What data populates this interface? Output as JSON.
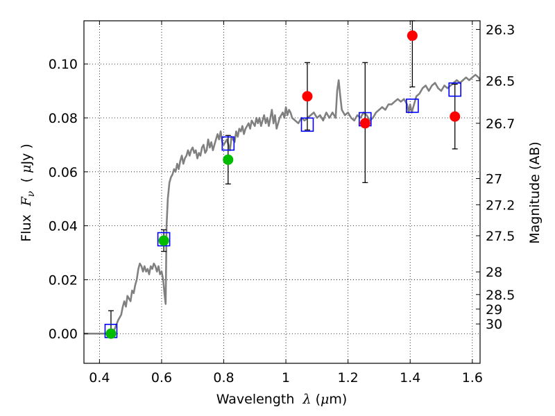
{
  "chart_data": {
    "type": "scatter",
    "xlabel": {
      "prefix": "Wavelength",
      "symbol": "λ",
      "unit_open": "(",
      "unit_mu": "μ",
      "unit_rest": "m)"
    },
    "ylabel": {
      "prefix": "Flux",
      "symbol": "F",
      "sub": "ν",
      "unit_open": "(",
      "unit_mu": "μ",
      "unit_rest": "Jy )"
    },
    "y2label": "Magnitude (AB)",
    "xlim": [
      0.35,
      1.625
    ],
    "ylim": [
      -0.011,
      0.116
    ],
    "xticks": [
      {
        "v": 0.4,
        "t": "0.4"
      },
      {
        "v": 0.6,
        "t": "0.6"
      },
      {
        "v": 0.8,
        "t": "0.8"
      },
      {
        "v": 1.0,
        "t": "1"
      },
      {
        "v": 1.2,
        "t": "1.2"
      },
      {
        "v": 1.4,
        "t": "1.4"
      },
      {
        "v": 1.6,
        "t": "1.6"
      }
    ],
    "yticks": [
      {
        "v": 0.0,
        "t": "0.00"
      },
      {
        "v": 0.02,
        "t": "0.02"
      },
      {
        "v": 0.04,
        "t": "0.04"
      },
      {
        "v": 0.06,
        "t": "0.06"
      },
      {
        "v": 0.08,
        "t": "0.08"
      },
      {
        "v": 0.1,
        "t": "0.10"
      }
    ],
    "y2ticks": [
      {
        "v": 0.1128,
        "t": "26.3"
      },
      {
        "v": 0.0938,
        "t": "26.5"
      },
      {
        "v": 0.078,
        "t": "26.7"
      },
      {
        "v": 0.0575,
        "t": "27"
      },
      {
        "v": 0.0478,
        "t": "27.2"
      },
      {
        "v": 0.0363,
        "t": "27.5"
      },
      {
        "v": 0.0229,
        "t": "28"
      },
      {
        "v": 0.0145,
        "t": "28.5"
      },
      {
        "v": 0.0091,
        "t": "29"
      },
      {
        "v": 0.0036,
        "t": "30"
      }
    ],
    "grid": true,
    "colors": {
      "model": "#808080",
      "square": "#0000ff",
      "red": "#ff0000",
      "green": "#00bb00",
      "errorbar": "#000000"
    },
    "series": [
      {
        "kind": "line",
        "points": [
          [
            0.35,
            0.0
          ],
          [
            0.44,
            0.0
          ],
          [
            0.45,
            0.002
          ],
          [
            0.46,
            0.005
          ],
          [
            0.47,
            0.007
          ],
          [
            0.475,
            0.01
          ],
          [
            0.48,
            0.012
          ],
          [
            0.485,
            0.01
          ],
          [
            0.49,
            0.014
          ],
          [
            0.5,
            0.012
          ],
          [
            0.505,
            0.016
          ],
          [
            0.51,
            0.015
          ],
          [
            0.515,
            0.018
          ],
          [
            0.52,
            0.02
          ],
          [
            0.525,
            0.024
          ],
          [
            0.53,
            0.026
          ],
          [
            0.535,
            0.025
          ],
          [
            0.54,
            0.023
          ],
          [
            0.545,
            0.025
          ],
          [
            0.55,
            0.023
          ],
          [
            0.555,
            0.024
          ],
          [
            0.56,
            0.022
          ],
          [
            0.565,
            0.025
          ],
          [
            0.57,
            0.024
          ],
          [
            0.575,
            0.026
          ],
          [
            0.58,
            0.025
          ],
          [
            0.585,
            0.023
          ],
          [
            0.59,
            0.025
          ],
          [
            0.595,
            0.022
          ],
          [
            0.6,
            0.023
          ],
          [
            0.605,
            0.02
          ],
          [
            0.61,
            0.014
          ],
          [
            0.613,
            0.011
          ],
          [
            0.616,
            0.04
          ],
          [
            0.62,
            0.05
          ],
          [
            0.625,
            0.056
          ],
          [
            0.63,
            0.058
          ],
          [
            0.635,
            0.059
          ],
          [
            0.64,
            0.061
          ],
          [
            0.645,
            0.06
          ],
          [
            0.65,
            0.063
          ],
          [
            0.655,
            0.061
          ],
          [
            0.66,
            0.064
          ],
          [
            0.665,
            0.066
          ],
          [
            0.67,
            0.063
          ],
          [
            0.675,
            0.065
          ],
          [
            0.68,
            0.066
          ],
          [
            0.685,
            0.068
          ],
          [
            0.69,
            0.066
          ],
          [
            0.695,
            0.068
          ],
          [
            0.7,
            0.069
          ],
          [
            0.705,
            0.067
          ],
          [
            0.71,
            0.068
          ],
          [
            0.715,
            0.065
          ],
          [
            0.72,
            0.067
          ],
          [
            0.725,
            0.066
          ],
          [
            0.73,
            0.069
          ],
          [
            0.735,
            0.07
          ],
          [
            0.74,
            0.067
          ],
          [
            0.745,
            0.068
          ],
          [
            0.75,
            0.072
          ],
          [
            0.755,
            0.069
          ],
          [
            0.76,
            0.071
          ],
          [
            0.765,
            0.068
          ],
          [
            0.77,
            0.07
          ],
          [
            0.775,
            0.072
          ],
          [
            0.78,
            0.074
          ],
          [
            0.785,
            0.072
          ],
          [
            0.79,
            0.075
          ],
          [
            0.795,
            0.071
          ],
          [
            0.8,
            0.07
          ],
          [
            0.805,
            0.071
          ],
          [
            0.81,
            0.072
          ],
          [
            0.815,
            0.07
          ],
          [
            0.82,
            0.068
          ],
          [
            0.825,
            0.073
          ],
          [
            0.83,
            0.072
          ],
          [
            0.835,
            0.071
          ],
          [
            0.84,
            0.075
          ],
          [
            0.845,
            0.073
          ],
          [
            0.85,
            0.076
          ],
          [
            0.855,
            0.075
          ],
          [
            0.86,
            0.077
          ],
          [
            0.865,
            0.074
          ],
          [
            0.87,
            0.076
          ],
          [
            0.88,
            0.078
          ],
          [
            0.885,
            0.076
          ],
          [
            0.89,
            0.079
          ],
          [
            0.9,
            0.077
          ],
          [
            0.905,
            0.08
          ],
          [
            0.91,
            0.078
          ],
          [
            0.915,
            0.08
          ],
          [
            0.92,
            0.077
          ],
          [
            0.925,
            0.079
          ],
          [
            0.93,
            0.081
          ],
          [
            0.935,
            0.078
          ],
          [
            0.94,
            0.08
          ],
          [
            0.945,
            0.077
          ],
          [
            0.95,
            0.08
          ],
          [
            0.955,
            0.083
          ],
          [
            0.96,
            0.078
          ],
          [
            0.965,
            0.081
          ],
          [
            0.97,
            0.076
          ],
          [
            0.975,
            0.078
          ],
          [
            0.98,
            0.08
          ],
          [
            0.99,
            0.082
          ],
          [
            0.995,
            0.08
          ],
          [
            1.0,
            0.084
          ],
          [
            1.005,
            0.081
          ],
          [
            1.01,
            0.083
          ],
          [
            1.015,
            0.082
          ],
          [
            1.02,
            0.08
          ],
          [
            1.03,
            0.079
          ],
          [
            1.04,
            0.078
          ],
          [
            1.05,
            0.08
          ],
          [
            1.06,
            0.079
          ],
          [
            1.07,
            0.08
          ],
          [
            1.08,
            0.081
          ],
          [
            1.09,
            0.082
          ],
          [
            1.1,
            0.08
          ],
          [
            1.11,
            0.081
          ],
          [
            1.12,
            0.079
          ],
          [
            1.13,
            0.082
          ],
          [
            1.14,
            0.08
          ],
          [
            1.15,
            0.082
          ],
          [
            1.16,
            0.08
          ],
          [
            1.165,
            0.09
          ],
          [
            1.17,
            0.094
          ],
          [
            1.175,
            0.088
          ],
          [
            1.18,
            0.083
          ],
          [
            1.19,
            0.081
          ],
          [
            1.2,
            0.082
          ],
          [
            1.21,
            0.08
          ],
          [
            1.22,
            0.079
          ],
          [
            1.23,
            0.081
          ],
          [
            1.24,
            0.08
          ],
          [
            1.25,
            0.082
          ],
          [
            1.26,
            0.081
          ],
          [
            1.27,
            0.079
          ],
          [
            1.28,
            0.08
          ],
          [
            1.29,
            0.082
          ],
          [
            1.3,
            0.083
          ],
          [
            1.31,
            0.084
          ],
          [
            1.32,
            0.083
          ],
          [
            1.33,
            0.085
          ],
          [
            1.34,
            0.085
          ],
          [
            1.35,
            0.086
          ],
          [
            1.36,
            0.087
          ],
          [
            1.37,
            0.086
          ],
          [
            1.38,
            0.087
          ],
          [
            1.39,
            0.085
          ],
          [
            1.395,
            0.082
          ],
          [
            1.4,
            0.085
          ],
          [
            1.405,
            0.082
          ],
          [
            1.41,
            0.084
          ],
          [
            1.42,
            0.088
          ],
          [
            1.43,
            0.089
          ],
          [
            1.44,
            0.091
          ],
          [
            1.45,
            0.092
          ],
          [
            1.46,
            0.09
          ],
          [
            1.47,
            0.092
          ],
          [
            1.48,
            0.093
          ],
          [
            1.49,
            0.091
          ],
          [
            1.5,
            0.09
          ],
          [
            1.51,
            0.092
          ],
          [
            1.52,
            0.091
          ],
          [
            1.53,
            0.092
          ],
          [
            1.54,
            0.093
          ],
          [
            1.55,
            0.094
          ],
          [
            1.56,
            0.093
          ],
          [
            1.57,
            0.094
          ],
          [
            1.58,
            0.095
          ],
          [
            1.59,
            0.094
          ],
          [
            1.6,
            0.095
          ],
          [
            1.61,
            0.096
          ],
          [
            1.62,
            0.095
          ],
          [
            1.625,
            0.094
          ]
        ]
      },
      {
        "kind": "errorbar",
        "bars": [
          {
            "x": 0.437,
            "ylo": 0.0,
            "yhi": 0.0085
          },
          {
            "x": 0.607,
            "ylo": 0.0305,
            "yhi": 0.0385
          },
          {
            "x": 0.814,
            "ylo": 0.0555,
            "yhi": 0.0735
          },
          {
            "x": 1.069,
            "ylo": 0.0755,
            "yhi": 0.1005
          },
          {
            "x": 1.255,
            "ylo": 0.056,
            "yhi": 0.1005
          },
          {
            "x": 1.407,
            "ylo": 0.0915,
            "yhi": 0.116
          },
          {
            "x": 1.544,
            "ylo": 0.0685,
            "yhi": 0.0925
          }
        ]
      },
      {
        "kind": "squares",
        "points": [
          [
            0.437,
            0.001
          ],
          [
            0.607,
            0.035
          ],
          [
            0.814,
            0.0705
          ],
          [
            1.069,
            0.0775
          ],
          [
            1.255,
            0.0795
          ],
          [
            1.407,
            0.0845
          ],
          [
            1.544,
            0.0905
          ]
        ]
      },
      {
        "kind": "red",
        "points": [
          [
            1.069,
            0.088
          ],
          [
            1.255,
            0.078
          ],
          [
            1.407,
            0.1105
          ],
          [
            1.544,
            0.0805
          ]
        ]
      },
      {
        "kind": "green",
        "points": [
          [
            0.437,
            0.0
          ],
          [
            0.607,
            0.0345
          ],
          [
            0.814,
            0.0645
          ]
        ]
      }
    ]
  }
}
